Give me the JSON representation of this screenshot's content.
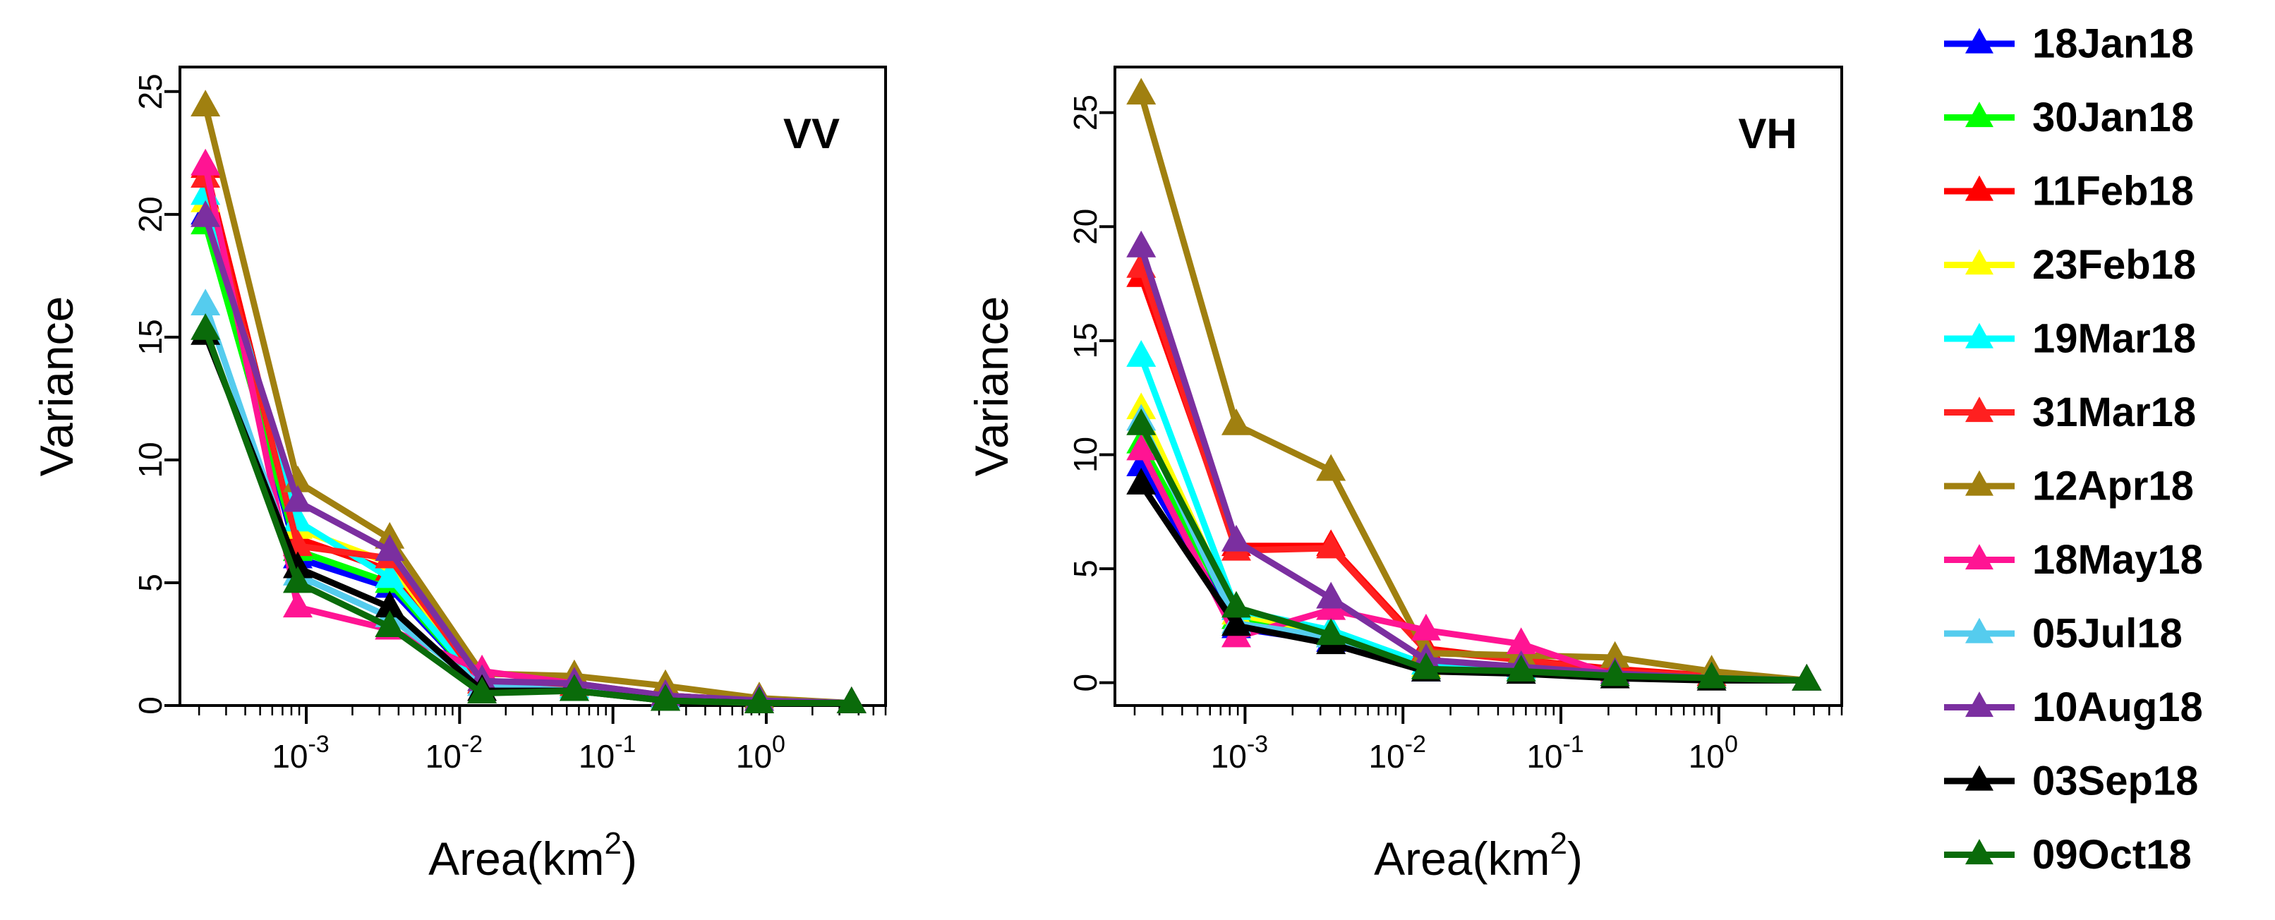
{
  "chart_data": [
    {
      "type": "line",
      "panel_label": "VV",
      "xlabel": "Area(km²)",
      "xlabel_base": "Area(km",
      "xlabel_sup": "2",
      "xlabel_close": ")",
      "ylabel": "Variance",
      "x_scale": "log",
      "xlim": [
        0.00015,
        6
      ],
      "ylim": [
        0,
        26
      ],
      "x_ticks": [
        0.001,
        0.01,
        0.1,
        1
      ],
      "x_tick_labels": [
        {
          "base": "10",
          "exp": "-3"
        },
        {
          "base": "10",
          "exp": "-2"
        },
        {
          "base": "10",
          "exp": "-1"
        },
        {
          "base": "10",
          "exp": "0"
        }
      ],
      "y_ticks": [
        0,
        5,
        10,
        15,
        20,
        25
      ],
      "y_tick_labels": [
        "0",
        "5",
        "10",
        "15",
        "20",
        "25"
      ],
      "x": [
        0.00022,
        0.00088,
        0.0035,
        0.014,
        0.056,
        0.22,
        0.9,
        3.6
      ],
      "series": [
        {
          "name": "18Jan18",
          "color": "#0000ff",
          "values": [
            20.0,
            6.0,
            4.8,
            0.8,
            0.7,
            0.3,
            0.2,
            0.1
          ]
        },
        {
          "name": "30Jan18",
          "color": "#00ff00",
          "values": [
            19.6,
            6.3,
            5.0,
            0.8,
            0.7,
            0.3,
            0.2,
            0.1
          ]
        },
        {
          "name": "11Feb18",
          "color": "#ff0000",
          "values": [
            21.9,
            6.8,
            5.5,
            0.9,
            0.8,
            0.4,
            0.2,
            0.1
          ]
        },
        {
          "name": "23Feb18",
          "color": "#ffff00",
          "values": [
            20.5,
            7.2,
            5.8,
            0.9,
            0.8,
            0.4,
            0.2,
            0.1
          ]
        },
        {
          "name": "19Mar18",
          "color": "#00ffff",
          "values": [
            20.8,
            7.5,
            5.2,
            0.8,
            0.7,
            0.3,
            0.2,
            0.1
          ]
        },
        {
          "name": "31Mar18",
          "color": "#ff2020",
          "values": [
            21.5,
            6.5,
            6.0,
            0.9,
            0.8,
            0.4,
            0.2,
            0.1
          ]
        },
        {
          "name": "12Apr18",
          "color": "#a08010",
          "values": [
            24.4,
            9.1,
            6.8,
            1.3,
            1.2,
            0.8,
            0.3,
            0.1
          ]
        },
        {
          "name": "18May18",
          "color": "#ff1493",
          "values": [
            22.0,
            4.0,
            3.1,
            1.4,
            0.9,
            0.4,
            0.2,
            0.1
          ]
        },
        {
          "name": "05Jul18",
          "color": "#55ccee",
          "values": [
            16.3,
            5.3,
            3.6,
            0.8,
            0.6,
            0.3,
            0.2,
            0.1
          ]
        },
        {
          "name": "10Aug18",
          "color": "#7b2fa0",
          "values": [
            19.9,
            8.3,
            6.3,
            1.0,
            0.9,
            0.4,
            0.2,
            0.1
          ]
        },
        {
          "name": "03Sep18",
          "color": "#000000",
          "values": [
            15.1,
            5.6,
            4.0,
            0.6,
            0.6,
            0.2,
            0.1,
            0.1
          ]
        },
        {
          "name": "09Oct18",
          "color": "#0a6b0a",
          "values": [
            15.3,
            5.0,
            3.2,
            0.5,
            0.6,
            0.2,
            0.1,
            0.1
          ]
        }
      ]
    },
    {
      "type": "line",
      "panel_label": "VH",
      "xlabel": "Area(km²)",
      "xlabel_base": "Area(km",
      "xlabel_sup": "2",
      "xlabel_close": ")",
      "ylabel": "Variance",
      "x_scale": "log",
      "xlim": [
        0.00015,
        6
      ],
      "ylim": [
        -1,
        27
      ],
      "x_ticks": [
        0.001,
        0.01,
        0.1,
        1
      ],
      "x_tick_labels": [
        {
          "base": "10",
          "exp": "-3"
        },
        {
          "base": "10",
          "exp": "-2"
        },
        {
          "base": "10",
          "exp": "-1"
        },
        {
          "base": "10",
          "exp": "0"
        }
      ],
      "y_ticks": [
        0,
        5,
        10,
        15,
        20,
        25
      ],
      "y_tick_labels": [
        "0",
        "5",
        "10",
        "15",
        "20",
        "25"
      ],
      "x": [
        0.00022,
        0.00088,
        0.0035,
        0.014,
        0.056,
        0.22,
        0.9,
        3.6
      ],
      "series": [
        {
          "name": "18Jan18",
          "color": "#0000ff",
          "values": [
            9.5,
            2.4,
            1.8,
            0.5,
            0.5,
            0.3,
            0.2,
            0.1
          ]
        },
        {
          "name": "30Jan18",
          "color": "#00ff00",
          "values": [
            10.5,
            2.8,
            2.0,
            0.6,
            0.5,
            0.3,
            0.2,
            0.1
          ]
        },
        {
          "name": "11Feb18",
          "color": "#ff0000",
          "values": [
            17.8,
            6.0,
            6.0,
            1.5,
            1.0,
            0.6,
            0.3,
            0.1
          ]
        },
        {
          "name": "23Feb18",
          "color": "#ffff00",
          "values": [
            12.0,
            3.0,
            2.2,
            0.7,
            0.6,
            0.3,
            0.2,
            0.1
          ]
        },
        {
          "name": "19Mar18",
          "color": "#00ffff",
          "values": [
            14.3,
            3.2,
            2.3,
            0.8,
            0.6,
            0.3,
            0.2,
            0.1
          ]
        },
        {
          "name": "31Mar18",
          "color": "#ff2020",
          "values": [
            18.2,
            5.8,
            5.9,
            1.4,
            1.0,
            0.5,
            0.3,
            0.1
          ]
        },
        {
          "name": "12Apr18",
          "color": "#a08010",
          "values": [
            25.8,
            11.3,
            9.3,
            1.3,
            1.2,
            1.1,
            0.5,
            0.1
          ]
        },
        {
          "name": "18May18",
          "color": "#ff1493",
          "values": [
            10.2,
            2.0,
            3.2,
            2.3,
            1.7,
            0.3,
            0.2,
            0.1
          ]
        },
        {
          "name": "05Jul18",
          "color": "#55ccee",
          "values": [
            11.5,
            2.6,
            2.0,
            0.6,
            0.5,
            0.3,
            0.2,
            0.1
          ]
        },
        {
          "name": "10Aug18",
          "color": "#7b2fa0",
          "values": [
            19.1,
            6.2,
            3.7,
            1.0,
            0.7,
            0.4,
            0.2,
            0.1
          ]
        },
        {
          "name": "03Sep18",
          "color": "#000000",
          "values": [
            8.7,
            2.5,
            1.7,
            0.5,
            0.4,
            0.2,
            0.1,
            0.1
          ]
        },
        {
          "name": "09Oct18",
          "color": "#0a6b0a",
          "values": [
            11.3,
            3.3,
            2.1,
            0.6,
            0.5,
            0.3,
            0.2,
            0.1
          ]
        }
      ]
    }
  ],
  "legend": {
    "placement": "right",
    "entries": [
      {
        "label": "18Jan18",
        "color": "#0000ff"
      },
      {
        "label": "30Jan18",
        "color": "#00ff00"
      },
      {
        "label": "11Feb18",
        "color": "#ff0000"
      },
      {
        "label": "23Feb18",
        "color": "#ffff00"
      },
      {
        "label": "19Mar18",
        "color": "#00ffff"
      },
      {
        "label": "31Mar18",
        "color": "#ff2020"
      },
      {
        "label": "12Apr18",
        "color": "#a08010"
      },
      {
        "label": "18May18",
        "color": "#ff1493"
      },
      {
        "label": "05Jul18",
        "color": "#55ccee"
      },
      {
        "label": "10Aug18",
        "color": "#7b2fa0"
      },
      {
        "label": "03Sep18",
        "color": "#000000"
      },
      {
        "label": "09Oct18",
        "color": "#0a6b0a"
      }
    ]
  }
}
